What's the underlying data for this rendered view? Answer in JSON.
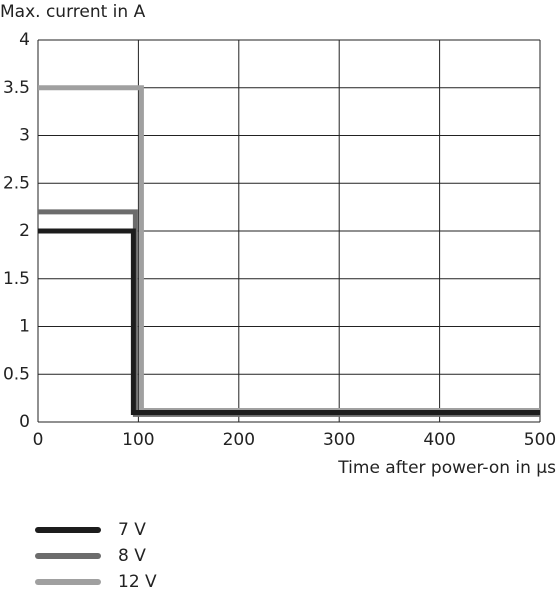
{
  "chart_data": {
    "type": "line",
    "title": "Max. current in A",
    "x_label": "Time after power-on in μs",
    "xlim": [
      0,
      500
    ],
    "xticks": [
      0,
      100,
      200,
      300,
      400,
      500
    ],
    "ylim": [
      0,
      4
    ],
    "yticks": [
      0,
      0.5,
      1,
      1.5,
      2,
      2.5,
      3,
      3.5,
      4
    ],
    "grid": true,
    "series": [
      {
        "name": "7 V",
        "color": "#1c1c1c",
        "x": [
          0,
          95,
          95,
          500
        ],
        "values": [
          2,
          2,
          0.1,
          0.1
        ]
      },
      {
        "name": "8 V",
        "color": "#6c6c6c",
        "x": [
          0,
          97,
          97,
          500
        ],
        "values": [
          2.2,
          2.2,
          0.08,
          0.08
        ]
      },
      {
        "name": "12 V",
        "color": "#a0a0a0",
        "x": [
          0,
          103,
          103,
          500
        ],
        "values": [
          3.5,
          3.5,
          0.12,
          0.12
        ]
      }
    ]
  }
}
